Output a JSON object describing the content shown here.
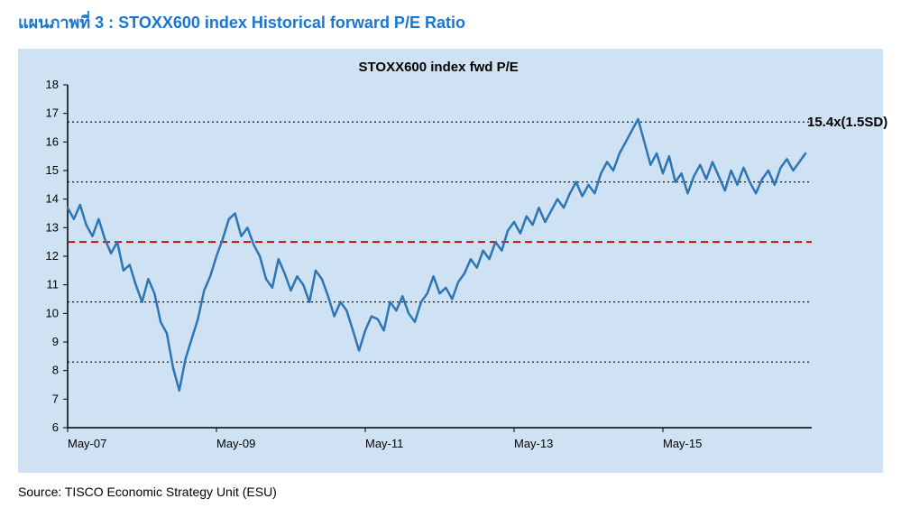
{
  "title": "แผนภาพที่ 3 : STOXX600 index Historical forward P/E Ratio",
  "inner_title": "STOXX600 index fwd P/E",
  "source": "Source: TISCO Economic Strategy Unit (ESU)",
  "annotation_label": "15.4x(1.5SD)",
  "chart": {
    "type": "line",
    "background_color": "#cfe2f3",
    "axis_color": "#000000",
    "line_color": "#2e75b6",
    "line_width": 2.5,
    "ref_line_color": "#000000",
    "ref_line_dash": "2,3",
    "mean_line_color": "#c00000",
    "mean_line_dash": "8,5",
    "ylim": [
      6,
      18
    ],
    "ytick_step": 1,
    "xlabels": [
      "May-07",
      "May-09",
      "May-11",
      "May-13",
      "May-15"
    ],
    "x_index_range": [
      0,
      120
    ],
    "x_tick_positions": [
      0,
      24,
      48,
      72,
      96
    ],
    "ref_lines_y": [
      8.3,
      10.4,
      14.6,
      16.7
    ],
    "mean_line_y": 12.5,
    "series": [
      13.7,
      13.3,
      13.8,
      13.1,
      12.7,
      13.3,
      12.6,
      12.1,
      12.5,
      11.5,
      11.7,
      11.0,
      10.4,
      11.2,
      10.7,
      9.7,
      9.3,
      8.1,
      7.3,
      8.4,
      9.1,
      9.8,
      10.8,
      11.3,
      12.0,
      12.6,
      13.3,
      13.5,
      12.7,
      13.0,
      12.4,
      12.0,
      11.2,
      10.9,
      11.9,
      11.4,
      10.8,
      11.3,
      11.0,
      10.4,
      11.5,
      11.2,
      10.6,
      9.9,
      10.4,
      10.1,
      9.4,
      8.7,
      9.4,
      9.9,
      9.8,
      9.4,
      10.4,
      10.1,
      10.6,
      10.0,
      9.7,
      10.4,
      10.7,
      11.3,
      10.7,
      10.9,
      10.5,
      11.1,
      11.4,
      11.9,
      11.6,
      12.2,
      11.9,
      12.5,
      12.2,
      12.9,
      13.2,
      12.8,
      13.4,
      13.1,
      13.7,
      13.2,
      13.6,
      14.0,
      13.7,
      14.2,
      14.6,
      14.1,
      14.5,
      14.2,
      14.9,
      15.3,
      15.0,
      15.6,
      16.0,
      16.4,
      16.8,
      16.0,
      15.2,
      15.6,
      14.9,
      15.5,
      14.6,
      14.9,
      14.2,
      14.8,
      15.2,
      14.7,
      15.3,
      14.8,
      14.3,
      15.0,
      14.5,
      15.1,
      14.6,
      14.2,
      14.7,
      15.0,
      14.5,
      15.1,
      15.4,
      15.0,
      15.3,
      15.6
    ]
  },
  "inner_title_fontsize": 15,
  "axis_fontsize": 13
}
